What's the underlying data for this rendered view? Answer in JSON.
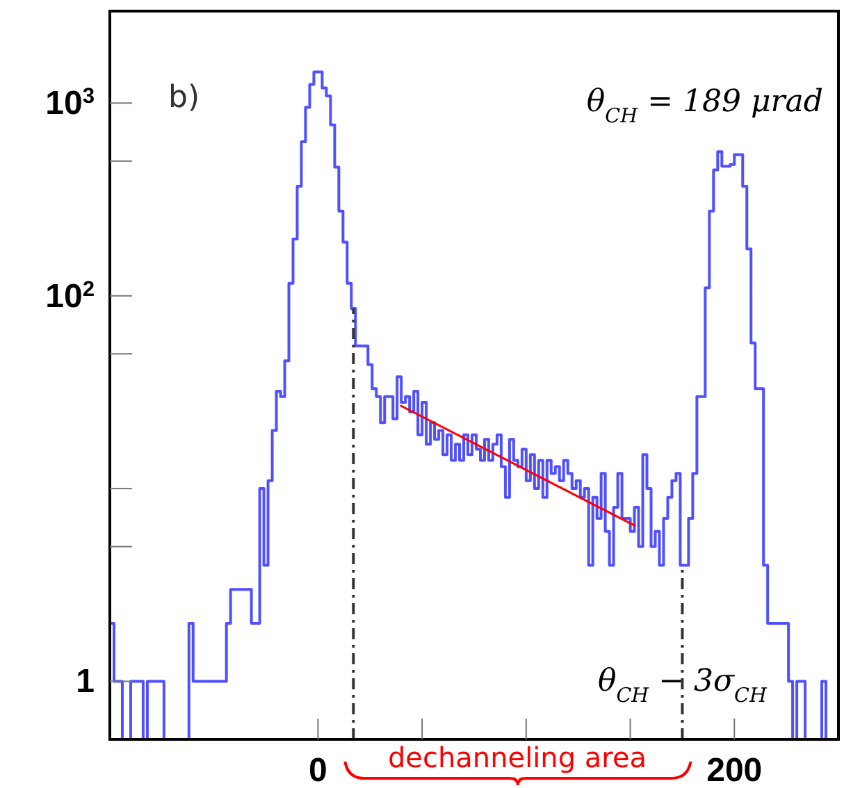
{
  "chart_data": {
    "type": "histogram",
    "bins": [
      -100,
      -98,
      -96,
      -94,
      -92,
      -90,
      -88,
      -86,
      -84,
      -82,
      -80,
      -78,
      -76,
      -74,
      -72,
      -70,
      -68,
      -66,
      -64,
      -62,
      -60,
      -58,
      -56,
      -54,
      -52,
      -50,
      -48,
      -46,
      -44,
      -42,
      -40,
      -38,
      -36,
      -34,
      -32,
      -30,
      -28,
      -26,
      -24,
      -22,
      -20,
      -18,
      -16,
      -14,
      -12,
      -10,
      -8,
      -6,
      -4,
      -2,
      0,
      2,
      4,
      6,
      8,
      10,
      12,
      14,
      16,
      18,
      20,
      22,
      24,
      26,
      28,
      30,
      32,
      34,
      36,
      38,
      40,
      42,
      44,
      46,
      48,
      50,
      52,
      54,
      56,
      58,
      60,
      62,
      64,
      66,
      68,
      70,
      72,
      74,
      76,
      78,
      80,
      82,
      84,
      86,
      88,
      90,
      92,
      94,
      96,
      98,
      100,
      102,
      104,
      106,
      108,
      110,
      112,
      114,
      116,
      118,
      120,
      122,
      124,
      126,
      128,
      130,
      132,
      134,
      136,
      138,
      140,
      142,
      144,
      146,
      148,
      150,
      152,
      154,
      156,
      158,
      160,
      162,
      164,
      166,
      168,
      170,
      172,
      174,
      176,
      178,
      180,
      182,
      184,
      186,
      188,
      190,
      192,
      194,
      196,
      198,
      200,
      202,
      204,
      206,
      208,
      210,
      212,
      214,
      216,
      218,
      220,
      222,
      224,
      226,
      228,
      230,
      232,
      234,
      236,
      238,
      240,
      242,
      244,
      246,
      248,
      250
    ],
    "series": [
      {
        "color": "#5050ff",
        "values": [
          2,
          1,
          1,
          null,
          null,
          1,
          1,
          1,
          null,
          1,
          1,
          1,
          1,
          null,
          null,
          null,
          null,
          null,
          null,
          2,
          1,
          1,
          1,
          1,
          1,
          1,
          1,
          1,
          2,
          3,
          3,
          3,
          3,
          3,
          2,
          2,
          10,
          4,
          11,
          20,
          32,
          30,
          46,
          116,
          197,
          370,
          630,
          950,
          1250,
          1450,
          1450,
          1200,
          1090,
          770,
          465,
          275,
          190,
          116,
          86,
          55,
          55,
          55,
          44,
          33,
          30,
          22,
          30,
          30,
          23,
          38,
          28,
          30,
          25,
          32,
          19,
          28,
          17,
          22,
          18,
          20,
          15,
          19,
          14,
          17,
          14,
          19,
          15,
          19,
          16,
          14,
          18,
          14,
          17,
          19,
          13,
          9,
          18,
          14,
          13,
          16,
          11,
          15,
          10,
          14,
          9,
          14,
          12,
          13,
          11,
          14,
          12,
          10,
          11,
          9,
          10,
          4,
          9,
          7,
          12,
          6,
          4,
          8,
          12,
          7,
          7,
          6,
          8,
          5,
          15,
          10,
          5,
          6,
          4,
          7,
          9,
          11,
          12,
          4,
          4,
          7,
          12,
          30,
          30,
          110,
          275,
          450,
          560,
          470,
          470,
          480,
          540,
          540,
          370,
          175,
          57,
          33,
          33,
          4,
          2,
          2,
          2,
          2,
          2,
          1,
          null,
          1,
          1,
          null,
          null,
          null,
          null,
          1,
          null,
          null,
          null
        ]
      },
      {
        "type": "line",
        "color": "#ff0000",
        "x": [
          39.5,
          152.5
        ],
        "values": [
          27,
          6.4
        ]
      }
    ],
    "log": "y",
    "xlim": [
      -100,
      250
    ],
    "xticks": [
      0,
      {
        "value": 50,
        "label": null
      },
      {
        "value": 100,
        "label": null
      },
      {
        "value": 150,
        "label": null
      },
      200
    ],
    "ylim": [
      0.5,
      3000
    ],
    "yticks": [
      1,
      {
        "value": 5,
        "label": null
      },
      {
        "value": 10,
        "label": null
      },
      {
        "value": 50,
        "label": null
      },
      {
        "value": 100,
        "label": "10$^{2}$"
      },
      {
        "value": 500,
        "label": null
      },
      {
        "value": 1000,
        "label": "10$^{3}$"
      }
    ],
    "ref_lines": [
      {
        "axis": "x",
        "value": 17,
        "label": null,
        "line_style": "dashdot",
        "color": "#333333"
      },
      {
        "axis": "x",
        "value": 175,
        "label": "θ$_{CH}$ − 3σ$_{CH}$",
        "line_style": "dashdot",
        "color": "#333333"
      }
    ],
    "annotations": [
      "b)",
      "θ$_{CH}$ = 189 μrad",
      "dechanneling area"
    ]
  }
}
